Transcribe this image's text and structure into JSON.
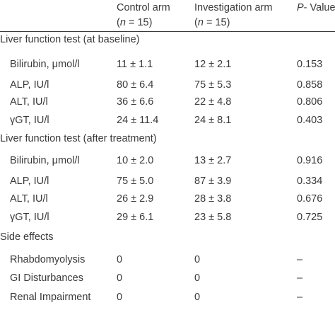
{
  "header": {
    "col1_line1": "Control arm",
    "col1_line2_prefix": "(",
    "col1_line2_var": "n",
    "col1_line2_suffix": " = 15)",
    "col2_line1": "Investigation arm",
    "col2_line2_prefix": "(",
    "col2_line2_var": "n",
    "col2_line2_suffix": " = 15)",
    "col3_var": "P",
    "col3_suffix": "- Value"
  },
  "sections": [
    {
      "title": "Liver function test (at baseline)",
      "rows": [
        {
          "label": "Bilirubin, μmol/l",
          "control": "11 ± 1.1",
          "investigation": "12 ± 2.1",
          "p": "0.153"
        },
        {
          "label": "ALP, IU/l",
          "control": "80 ± 6.4",
          "investigation": "75 ± 5.3",
          "p": "0.858"
        },
        {
          "label": "ALT, IU/l",
          "control": "36 ± 6.6",
          "investigation": "22 ± 4.8",
          "p": "0.806"
        },
        {
          "label": "γGT, IU/l",
          "control": "24 ± 11.4",
          "investigation": "24 ± 8.1",
          "p": "0.403"
        }
      ]
    },
    {
      "title": "Liver function test (after treatment)",
      "rows": [
        {
          "label": "Bilirubin, μmol/l",
          "control": "10 ± 2.0",
          "investigation": "13 ± 2.7",
          "p": "0.916"
        },
        {
          "label": "ALP, IU/l",
          "control": "75 ± 5.0",
          "investigation": "87 ± 3.9",
          "p": "0.334"
        },
        {
          "label": "ALT, IU/l",
          "control": "26 ± 2.9",
          "investigation": "28 ± 3.8",
          "p": "0.676"
        },
        {
          "label": "γGT, IU/l",
          "control": "29 ± 6.1",
          "investigation": "23 ± 5.8",
          "p": "0.725"
        }
      ]
    },
    {
      "title": "Side effects",
      "rows": [
        {
          "label": "Rhabdomyolysis",
          "control": "0",
          "investigation": "0",
          "p": "–"
        },
        {
          "label": "GI Disturbances",
          "control": "0",
          "investigation": "0",
          "p": "–"
        },
        {
          "label": "Renal Impairment",
          "control": "0",
          "investigation": "0",
          "p": "–"
        }
      ]
    }
  ]
}
